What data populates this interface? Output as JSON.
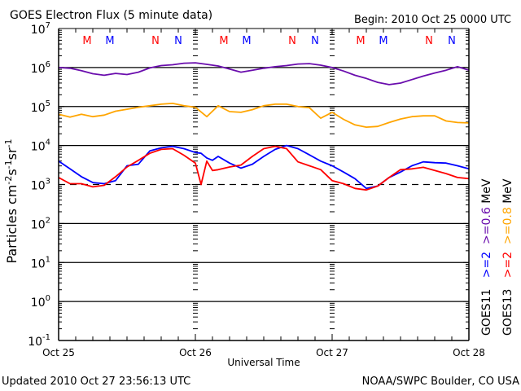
{
  "chart_data": {
    "type": "line",
    "title": "GOES Electron Flux (5 minute data)",
    "begin_label": "Begin: 2010 Oct 25 0000 UTC",
    "xlabel": "Universal Time",
    "ylabel": "Particles cm-2 s-1 sr-1",
    "ylabel_parts": {
      "base": "Particles cm",
      "e1": "-2",
      "s": "s",
      "e2": "-1",
      "sr": "sr",
      "e3": "-1"
    },
    "yscale": "log",
    "ylim": [
      0.1,
      10000000
    ],
    "y_ticks": [
      {
        "exp": "7",
        "value": 10000000
      },
      {
        "exp": "6",
        "value": 1000000
      },
      {
        "exp": "5",
        "value": 100000
      },
      {
        "exp": "4",
        "value": 10000
      },
      {
        "exp": "3",
        "value": 1000
      },
      {
        "exp": "2",
        "value": 100
      },
      {
        "exp": "1",
        "value": 10
      },
      {
        "exp": "0",
        "value": 1
      },
      {
        "exp": "-1",
        "value": 0.1
      }
    ],
    "x_unit": "hours since 2010 Oct 25 0000 UTC",
    "xlim": [
      0,
      72
    ],
    "x_ticks": [
      {
        "label": "Oct 25",
        "hour": 0
      },
      {
        "label": "Oct 26",
        "hour": 24
      },
      {
        "label": "Oct 27",
        "hour": 48
      },
      {
        "label": "Oct 28",
        "hour": 72
      }
    ],
    "threshold_line": {
      "value": 1000,
      "style": "dashed"
    },
    "grid": "horizontal lines at 10^4, 10^5, 10^6",
    "markers": [
      {
        "label": "M",
        "hour": 5,
        "color": "#ff0000"
      },
      {
        "label": "M",
        "hour": 9,
        "color": "#0000ff"
      },
      {
        "label": "N",
        "hour": 17,
        "color": "#ff0000"
      },
      {
        "label": "N",
        "hour": 21,
        "color": "#0000ff"
      },
      {
        "label": "M",
        "hour": 29,
        "color": "#ff0000"
      },
      {
        "label": "M",
        "hour": 33,
        "color": "#0000ff"
      },
      {
        "label": "N",
        "hour": 41,
        "color": "#ff0000"
      },
      {
        "label": "N",
        "hour": 45,
        "color": "#0000ff"
      },
      {
        "label": "M",
        "hour": 53,
        "color": "#ff0000"
      },
      {
        "label": "M",
        "hour": 57,
        "color": "#0000ff"
      },
      {
        "label": "N",
        "hour": 65,
        "color": "#ff0000"
      },
      {
        "label": "N",
        "hour": 69,
        "color": "#0000ff"
      }
    ],
    "legend": [
      {
        "satellite": "GOES11",
        "satellite_color": "#000000",
        "e1_label": ">=2",
        "e1_color": "#0000ff",
        "e2_label": ">=0.6",
        "e2_color": "#6a0dad",
        "unit": "MeV"
      },
      {
        "satellite": "GOES13",
        "satellite_color": "#000000",
        "e1_label": ">=2",
        "e1_color": "#ff0000",
        "e2_label": ">=0.8",
        "e2_color": "#ffa500",
        "unit": "MeV"
      }
    ],
    "legend_placement": "right (rotated vertical)",
    "series": [
      {
        "name": "GOES11 >=0.6 MeV",
        "color": "#6a0dad",
        "x": [
          0,
          2,
          4,
          6,
          8,
          10,
          12,
          14,
          16,
          18,
          20,
          22,
          24,
          26,
          28,
          30,
          32,
          34,
          36,
          38,
          40,
          42,
          44,
          46,
          48,
          50,
          52,
          54,
          56,
          58,
          60,
          62,
          64,
          66,
          68,
          70,
          72
        ],
        "log10": [
          6.0,
          5.98,
          5.92,
          5.84,
          5.8,
          5.85,
          5.82,
          5.88,
          5.99,
          6.05,
          6.07,
          6.11,
          6.12,
          6.08,
          6.04,
          5.96,
          5.88,
          5.93,
          5.98,
          6.02,
          6.05,
          6.09,
          6.1,
          6.06,
          6.0,
          5.91,
          5.8,
          5.72,
          5.62,
          5.56,
          5.6,
          5.69,
          5.78,
          5.86,
          5.93,
          6.02,
          5.93
        ]
      },
      {
        "name": "GOES13 >=0.8 MeV",
        "color": "#ffa500",
        "x": [
          0,
          2,
          4,
          6,
          8,
          10,
          12,
          14,
          16,
          18,
          20,
          22,
          24,
          26,
          28,
          30,
          32,
          34,
          36,
          38,
          40,
          42,
          44,
          46,
          48,
          50,
          52,
          54,
          56,
          58,
          60,
          62,
          64,
          66,
          68,
          70,
          72
        ],
        "log10": [
          4.8,
          4.73,
          4.8,
          4.74,
          4.78,
          4.88,
          4.93,
          4.98,
          5.02,
          5.06,
          5.08,
          5.02,
          4.98,
          4.74,
          5.02,
          4.87,
          4.85,
          4.92,
          5.02,
          5.06,
          5.06,
          5.0,
          4.97,
          4.7,
          4.85,
          4.67,
          4.53,
          4.47,
          4.49,
          4.59,
          4.68,
          4.74,
          4.76,
          4.76,
          4.63,
          4.59,
          4.58
        ]
      },
      {
        "name": "GOES11 >=2 MeV",
        "color": "#0000ff",
        "x": [
          0,
          2,
          4,
          6,
          8,
          10,
          12,
          14,
          16,
          18,
          20,
          22,
          24,
          25,
          26,
          27,
          28,
          30,
          32,
          34,
          36,
          38,
          40,
          42,
          44,
          46,
          48,
          50,
          52,
          54,
          56,
          58,
          60,
          62,
          64,
          66,
          68,
          70,
          72
        ],
        "log10": [
          3.6,
          3.4,
          3.2,
          3.05,
          3.02,
          3.1,
          3.48,
          3.52,
          3.86,
          3.94,
          3.98,
          3.92,
          3.82,
          3.8,
          3.68,
          3.62,
          3.72,
          3.55,
          3.42,
          3.52,
          3.72,
          3.9,
          4.0,
          3.92,
          3.76,
          3.6,
          3.48,
          3.32,
          3.15,
          2.9,
          2.96,
          3.18,
          3.32,
          3.48,
          3.58,
          3.56,
          3.55,
          3.48,
          3.4
        ]
      },
      {
        "name": "GOES13 >=2 MeV",
        "color": "#ff0000",
        "x": [
          0,
          2,
          4,
          6,
          8,
          10,
          12,
          14,
          16,
          18,
          20,
          22,
          24,
          25,
          26,
          27,
          28,
          30,
          32,
          34,
          36,
          38,
          40,
          42,
          44,
          46,
          48,
          50,
          52,
          54,
          56,
          58,
          60,
          62,
          64,
          66,
          68,
          70,
          72
        ],
        "log10": [
          3.18,
          3.02,
          3.02,
          2.94,
          2.98,
          3.2,
          3.45,
          3.62,
          3.8,
          3.9,
          3.92,
          3.75,
          3.55,
          3.0,
          3.6,
          3.36,
          3.38,
          3.45,
          3.5,
          3.72,
          3.92,
          3.98,
          3.92,
          3.58,
          3.48,
          3.38,
          3.1,
          3.02,
          2.9,
          2.86,
          2.96,
          3.18,
          3.38,
          3.4,
          3.44,
          3.36,
          3.28,
          3.18,
          3.15
        ]
      }
    ]
  },
  "footer": {
    "updated": "Updated 2010 Oct 27 23:56:13 UTC",
    "credit": "NOAA/SWPC Boulder, CO USA"
  }
}
